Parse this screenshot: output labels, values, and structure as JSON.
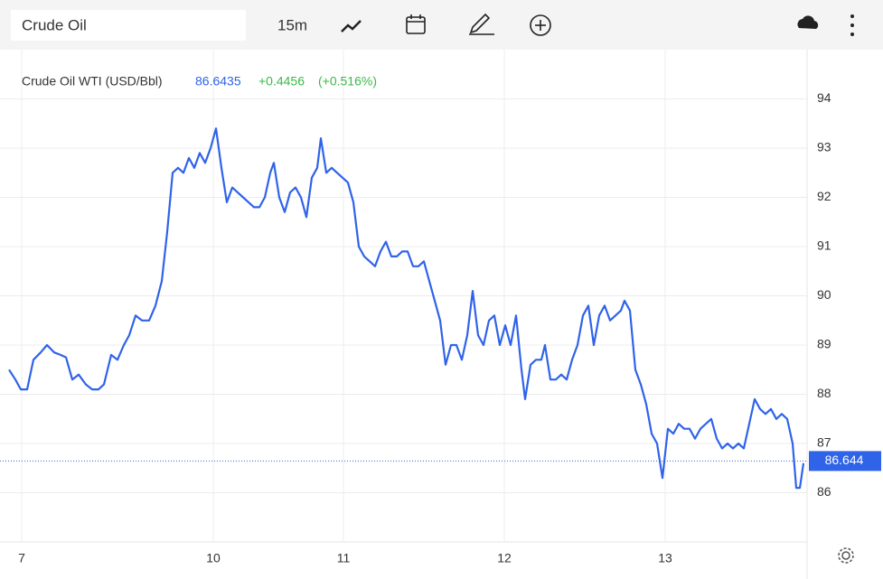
{
  "toolbar": {
    "search": "Crude Oil",
    "interval": "15m"
  },
  "chart_data": {
    "type": "line",
    "title": "Crude Oil WTI (USD/Bbl)",
    "price": "86.6435",
    "change": "+0.4456",
    "change_pct": "(+0.516%)",
    "x": [
      5,
      12,
      18,
      25,
      32,
      40,
      47,
      55,
      62,
      68,
      75,
      82,
      90,
      97,
      104,
      110,
      118,
      125,
      132,
      138,
      145,
      152,
      160,
      167,
      174,
      180,
      186,
      192,
      198,
      204,
      210,
      216,
      222,
      228,
      234,
      240,
      246,
      252,
      258,
      264,
      270,
      276,
      282,
      288,
      294,
      298,
      304,
      310,
      316,
      322,
      328,
      334,
      340,
      346,
      350,
      356,
      362,
      368,
      374,
      380,
      386,
      392,
      398,
      404,
      410,
      416,
      422,
      428,
      434,
      440,
      446,
      452,
      458,
      464,
      470,
      476,
      482,
      488,
      494,
      500,
      506,
      512,
      518,
      524,
      530,
      536,
      542,
      548,
      554,
      560,
      566,
      572,
      576,
      582,
      588,
      594,
      598,
      604,
      610,
      616,
      622,
      628,
      634,
      640,
      646,
      652,
      658,
      664,
      670,
      676,
      682,
      686,
      692,
      698,
      704,
      710,
      716,
      722,
      728,
      734,
      740,
      746,
      752,
      758,
      764,
      770,
      776,
      782,
      788,
      794,
      800,
      806,
      812,
      818,
      824,
      830,
      836,
      842,
      848,
      854,
      860,
      866,
      872,
      876,
      880,
      884
    ],
    "series": [
      {
        "name": "Crude Oil WTI",
        "color": "#2f63e8",
        "values": [
          88.5,
          88.3,
          88.1,
          88.1,
          88.7,
          88.85,
          89.0,
          88.85,
          88.8,
          88.75,
          88.3,
          88.4,
          88.2,
          88.1,
          88.1,
          88.2,
          88.8,
          88.7,
          89.0,
          89.2,
          89.6,
          89.5,
          89.5,
          89.8,
          90.3,
          91.3,
          92.5,
          92.6,
          92.5,
          92.8,
          92.6,
          92.9,
          92.7,
          93.0,
          93.4,
          92.6,
          91.9,
          92.2,
          92.1,
          92.0,
          91.9,
          91.8,
          91.8,
          92.0,
          92.5,
          92.7,
          92.0,
          91.7,
          92.1,
          92.2,
          92.0,
          91.6,
          92.4,
          92.6,
          93.2,
          92.5,
          92.6,
          92.5,
          92.4,
          92.3,
          91.9,
          91.0,
          90.8,
          90.7,
          90.6,
          90.9,
          91.1,
          90.8,
          90.8,
          90.9,
          90.9,
          90.6,
          90.6,
          90.7,
          90.3,
          89.9,
          89.5,
          88.6,
          89.0,
          89.0,
          88.7,
          89.2,
          90.1,
          89.2,
          89.0,
          89.5,
          89.6,
          89.0,
          89.4,
          89.0,
          89.6,
          88.5,
          87.9,
          88.6,
          88.7,
          88.7,
          89.0,
          88.3,
          88.3,
          88.4,
          88.3,
          88.7,
          89.0,
          89.6,
          89.8,
          89.0,
          89.6,
          89.8,
          89.5,
          89.6,
          89.7,
          89.9,
          89.7,
          88.5,
          88.2,
          87.8,
          87.2,
          87.0,
          86.3,
          87.3,
          87.2,
          87.4,
          87.3,
          87.3,
          87.1,
          87.3,
          87.4,
          87.5,
          87.1,
          86.9,
          87.0,
          86.9,
          87.0,
          86.9,
          87.4,
          87.9,
          87.7,
          87.6,
          87.7,
          87.5,
          87.6,
          87.5,
          87.0,
          86.1,
          86.1,
          86.6
        ]
      }
    ],
    "last_value": 86.644,
    "xlim": [
      0,
      888
    ],
    "xticks": [
      {
        "value": 19,
        "label": "7"
      },
      {
        "value": 231,
        "label": "10"
      },
      {
        "value": 375,
        "label": "11"
      },
      {
        "value": 553,
        "label": "12"
      },
      {
        "value": 731,
        "label": "13"
      }
    ],
    "ylim": [
      85,
      95
    ],
    "yticks": [
      86,
      87,
      88,
      89,
      90,
      91,
      92,
      93,
      94
    ],
    "grid": true
  }
}
